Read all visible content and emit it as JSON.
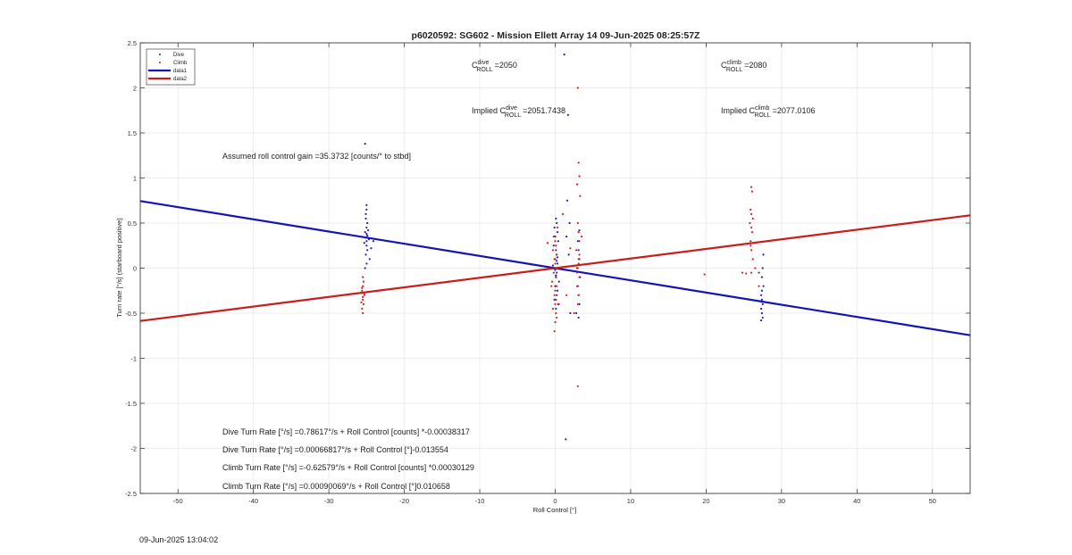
{
  "timestamp": "09-Jun-2025 13:04:02",
  "annotations": {
    "c_roll_dive_base": "C",
    "c_roll_dive_sup": "dive",
    "c_roll_dive_sub": "ROLL",
    "c_roll_dive_value": "=2050",
    "c_roll_climb_base": "C",
    "c_roll_climb_sup": "climb",
    "c_roll_climb_sub": "ROLL",
    "c_roll_climb_value": "=2080",
    "implied_dive_prefix": "Implied C",
    "implied_dive_sup": "dive",
    "implied_dive_sub": "ROLL",
    "implied_dive_value": "=2051.7438",
    "implied_climb_prefix": "Implied C",
    "implied_climb_sup": "climb",
    "implied_climb_sub": "ROLL",
    "implied_climb_value": "=2077.0106",
    "gain": "Assumed roll control gain =35.3732 [counts/° to stbd]",
    "eq1": "Dive Turn Rate [°/s] =0.78617°/s + Roll Control [counts] *-0.00038317",
    "eq2": "Dive Turn Rate [°/s] =0.00066817°/s + Roll Control [°]-0.013554",
    "eq3": "Climb Turn Rate [°/s] =-0.62579°/s + Roll Control [counts] *0.00030129",
    "eq4": "Climb Turn Rate [°/s] =0.00090069°/s + Roll Control [°]0.010658"
  },
  "chart_data": {
    "type": "scatter",
    "title": "p6020592: SG602 - Mission Ellett Array 14 09-Jun-2025 08:25:57Z",
    "xlabel": "Roll Control [°]",
    "ylabel": "Turn rate [°/s] (starboard positive)",
    "xlim": [
      -55,
      55
    ],
    "ylim": [
      -2.5,
      2.5
    ],
    "xticks": [
      -50,
      -40,
      -30,
      -20,
      -10,
      0,
      10,
      20,
      30,
      40,
      50
    ],
    "yticks": [
      -2.5,
      -2,
      -1.5,
      -1,
      -0.5,
      0,
      0.5,
      1,
      1.5,
      2,
      2.5
    ],
    "xtick_labels": [
      "-50",
      "-40",
      "-30",
      "-20",
      "-10",
      "0",
      "10",
      "20",
      "30",
      "40",
      "50"
    ],
    "ytick_labels": [
      "-2.5",
      "-2",
      "-1.5",
      "-1",
      "-0.5",
      "0",
      "0.5",
      "1",
      "1.5",
      "2",
      "2.5"
    ],
    "grid": true,
    "legend_position": "top-left",
    "legend": [
      {
        "label": "Dive",
        "kind": "marker",
        "color": "#1f1fbf"
      },
      {
        "label": "Climb",
        "kind": "marker",
        "color": "#d62020"
      },
      {
        "label": "data1",
        "kind": "line",
        "color": "#1414b4"
      },
      {
        "label": "data2",
        "kind": "line",
        "color": "#c81e1e"
      }
    ],
    "series": [
      {
        "name": "Dive",
        "color": "#1f1fbf",
        "x": [
          -25.0,
          -25.0,
          -25.1,
          -25.1,
          -24.9,
          -25.0,
          -24.8,
          -25.2,
          -25.0,
          -24.9,
          -25.1,
          -24.7,
          -25.0,
          -25.3,
          -25.0,
          -24.9,
          -25.1,
          -24.6,
          -25.0,
          -25.2,
          -24.4,
          -24.1,
          -25.2,
          0.1,
          0.2,
          -0.1,
          0.3,
          0.0,
          0.4,
          -0.2,
          0.1,
          0.2,
          0.0,
          0.3,
          -0.1,
          0.2,
          0.1,
          0.5,
          0.0,
          0.3,
          0.2,
          -0.1,
          0.4,
          0.1,
          0.2,
          0.0,
          0.3,
          -0.3,
          0.1,
          3.0,
          3.1,
          3.2,
          2.9,
          3.3,
          3.0,
          3.1,
          3.2,
          2.8,
          3.1,
          1.2,
          1.7,
          1.6,
          1.5,
          1.8,
          2.0,
          1.4,
          3.2,
          1.9,
          27.3,
          27.4,
          27.5,
          27.3,
          27.4,
          27.5,
          27.3,
          27.6,
          27.4,
          27.5,
          27.0,
          27.6,
          27.4
        ],
        "y": [
          0.7,
          0.65,
          0.6,
          0.55,
          0.5,
          0.45,
          0.42,
          0.4,
          0.38,
          0.36,
          0.34,
          0.32,
          0.3,
          0.28,
          0.25,
          0.2,
          0.15,
          0.1,
          0.05,
          0.0,
          0.22,
          0.3,
          1.38,
          0.55,
          0.5,
          0.45,
          0.4,
          0.35,
          0.3,
          0.25,
          0.2,
          0.15,
          0.1,
          0.05,
          0.0,
          -0.05,
          -0.1,
          -0.15,
          -0.2,
          -0.25,
          -0.3,
          -0.35,
          -0.4,
          -0.45,
          0.08,
          -0.02,
          0.12,
          0.03,
          -0.08,
          0.3,
          0.2,
          0.1,
          0.0,
          -0.1,
          -0.2,
          -0.3,
          -0.4,
          -0.5,
          -0.55,
          2.37,
          1.7,
          0.75,
          0.35,
          0.15,
          -0.5,
          -1.9,
          0.42,
          0.5,
          -0.3,
          -0.35,
          -0.4,
          -0.45,
          -0.5,
          -0.55,
          -0.58,
          -0.2,
          -0.1,
          0.0,
          -0.05,
          0.15,
          -0.25
        ]
      },
      {
        "name": "Climb",
        "color": "#d62020",
        "x": [
          -25.5,
          -25.6,
          -25.4,
          -25.5,
          -25.3,
          -25.6,
          -25.5,
          -25.4,
          -25.7,
          -25.5,
          -25.3,
          -25.6,
          -25.5,
          -0.2,
          0.0,
          0.1,
          -0.3,
          0.2,
          -0.1,
          0.0,
          0.3,
          -0.2,
          0.1,
          -0.4,
          0.2,
          0.0,
          -0.1,
          0.1,
          0.0,
          -0.3,
          0.2,
          -0.1,
          0.0,
          0.3,
          0.1,
          3.0,
          3.1,
          3.2,
          2.9,
          3.3,
          3.0,
          3.1,
          3.2,
          2.8,
          3.1,
          3.0,
          3.2,
          2.9,
          3.1,
          3.0,
          3.2,
          3.1,
          2.9,
          3.0,
          2.0,
          1.5,
          -1.0,
          0.5,
          -0.5,
          1.0,
          2.5,
          3.5,
          26.0,
          26.1,
          25.9,
          26.0,
          26.2,
          25.8,
          26.0,
          26.1,
          25.9,
          26.0,
          26.2,
          26.0,
          25.9,
          19.8,
          24.8,
          25.3,
          27.0,
          26.5
        ],
        "y": [
          -0.5,
          -0.45,
          -0.4,
          -0.35,
          -0.3,
          -0.25,
          -0.2,
          -0.15,
          -0.38,
          -0.32,
          -0.28,
          -0.22,
          -0.1,
          0.35,
          0.3,
          0.25,
          0.2,
          0.15,
          0.1,
          0.05,
          0.0,
          -0.05,
          -0.1,
          -0.15,
          -0.2,
          -0.25,
          -0.3,
          -0.35,
          -0.4,
          -0.45,
          -0.55,
          -0.7,
          -0.6,
          0.45,
          -0.5,
          2.0,
          1.17,
          1.02,
          0.93,
          0.8,
          0.5,
          0.4,
          0.3,
          0.2,
          0.1,
          0.0,
          -0.1,
          -0.2,
          -0.3,
          -0.4,
          0.15,
          0.05,
          -0.05,
          -1.31,
          0.22,
          -0.3,
          0.28,
          -0.4,
          -0.2,
          0.6,
          -0.5,
          0.35,
          0.9,
          0.85,
          0.65,
          0.6,
          0.55,
          0.5,
          0.45,
          0.4,
          0.3,
          0.2,
          0.1,
          -0.05,
          0.25,
          -0.07,
          -0.05,
          -0.06,
          -0.2,
          0.0
        ]
      }
    ],
    "lines": [
      {
        "name": "data1",
        "color": "#1414b4",
        "x": [
          -55,
          55
        ],
        "y": [
          0.74479,
          -0.74479
        ]
      },
      {
        "name": "data2",
        "color": "#c81e1e",
        "x": [
          -55,
          55
        ],
        "y": [
          -0.58619,
          0.58619
        ]
      }
    ]
  }
}
